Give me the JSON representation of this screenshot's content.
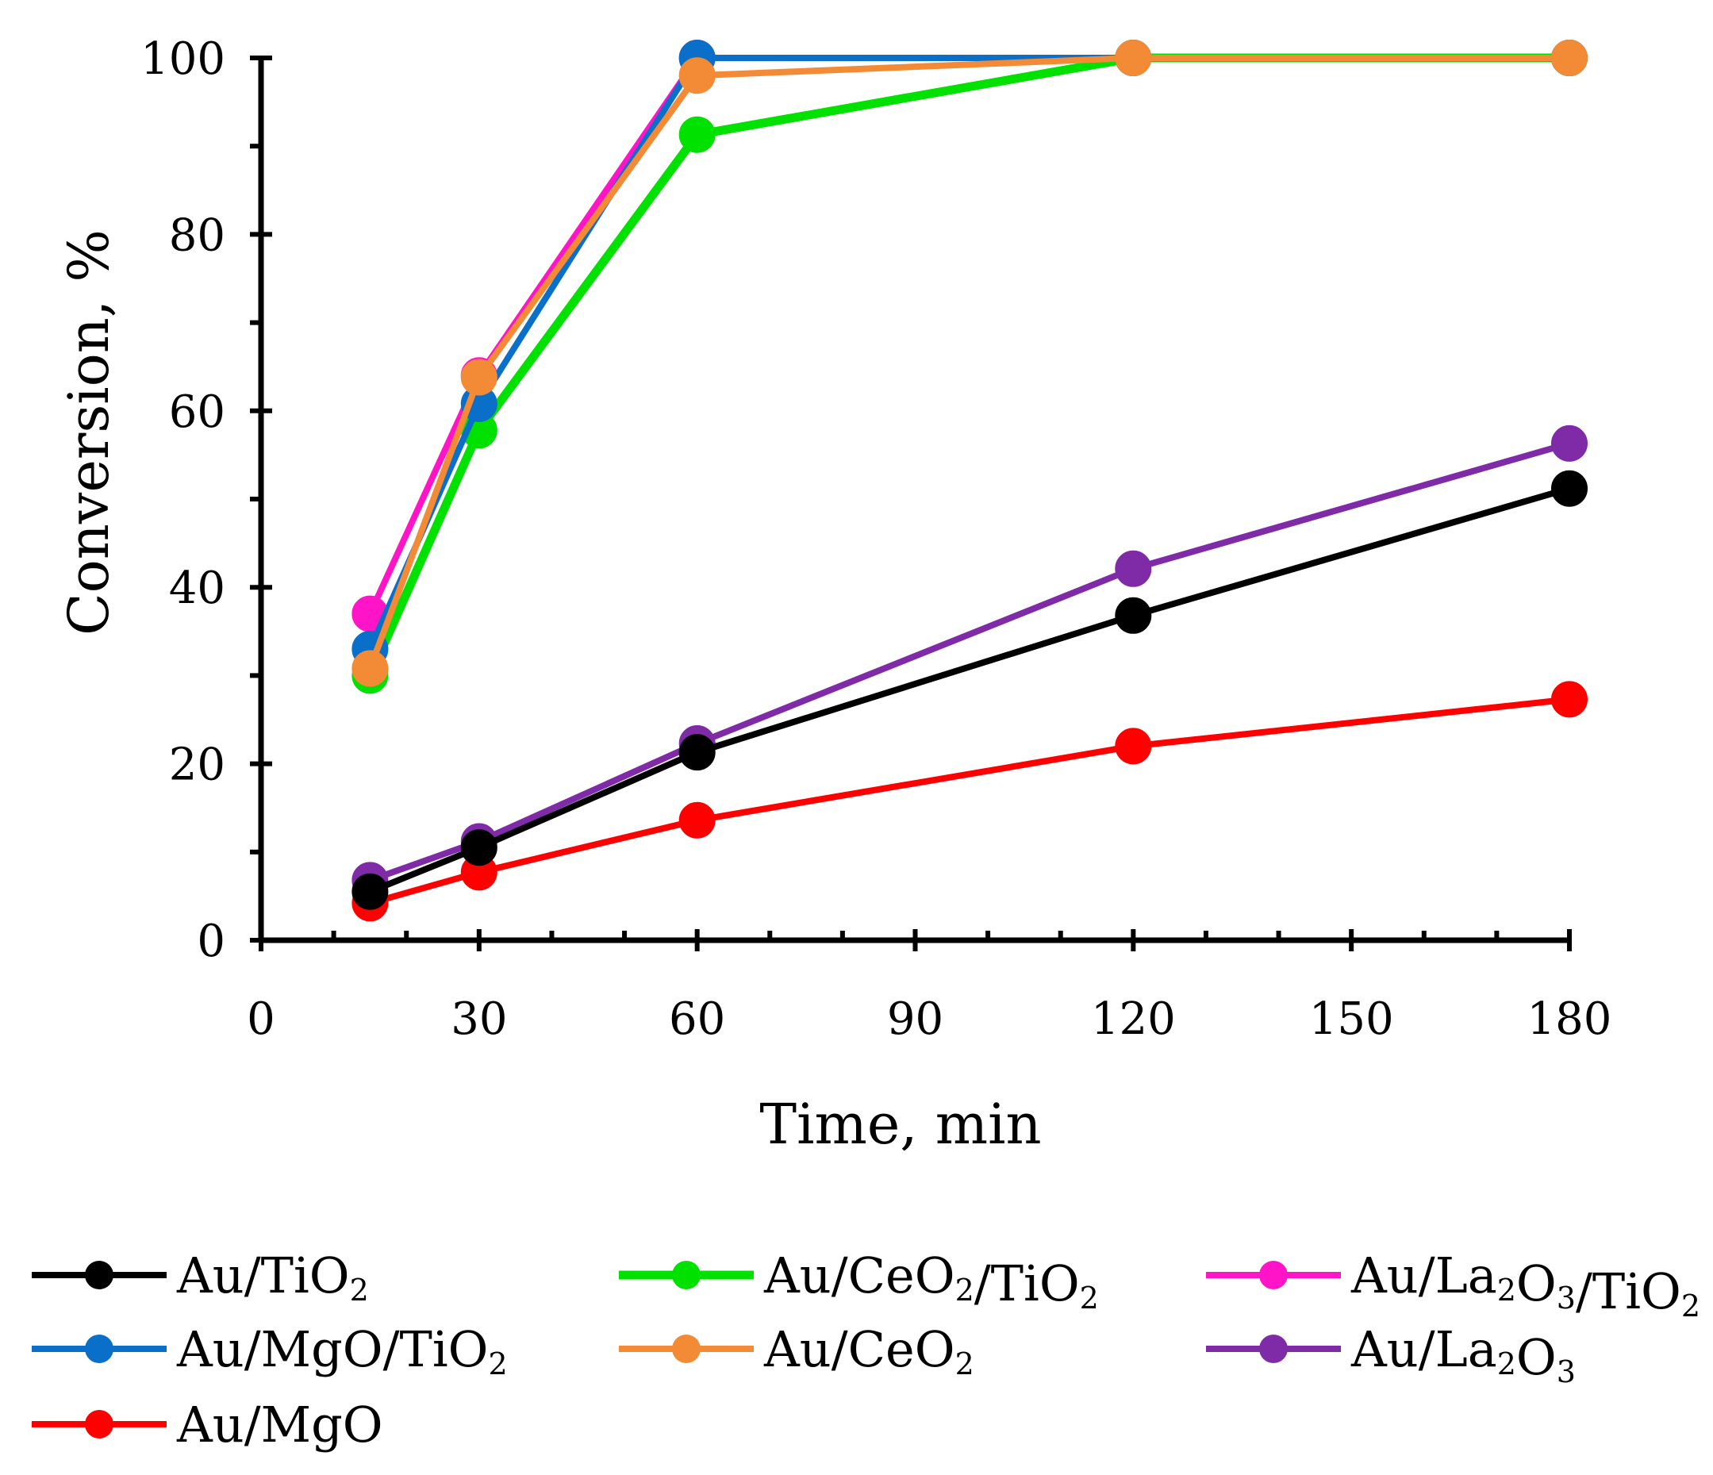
{
  "chart_data": {
    "type": "line",
    "title": "",
    "xlabel": "Time, min",
    "ylabel": "Conversion, %",
    "xlim": [
      0,
      180
    ],
    "ylim": [
      0,
      100
    ],
    "xticks": [
      0,
      30,
      60,
      90,
      120,
      150,
      180
    ],
    "yticks": [
      0,
      20,
      40,
      60,
      80,
      100
    ],
    "xtick_labels": [
      "0",
      "30",
      "60",
      "90",
      "120",
      "150",
      "180"
    ],
    "ytick_labels": [
      "0",
      "20",
      "40",
      "60",
      "80",
      "100"
    ],
    "grid": false,
    "legend_position": "bottom",
    "series": [
      {
        "name": "Au/TiO₂",
        "color": "#000000",
        "x": [
          15,
          30,
          60,
          120,
          180
        ],
        "y": [
          5.5,
          10.5,
          21.3,
          36.8,
          51.2
        ]
      },
      {
        "name": "Au/CeO₂/TiO₂",
        "color": "#00e100",
        "x": [
          15,
          30,
          60,
          120,
          180
        ],
        "y": [
          30.0,
          57.8,
          91.3,
          100,
          100
        ]
      },
      {
        "name": "Au/La₂O₃/TiO₂",
        "color": "#ff14c8",
        "x": [
          15,
          30,
          60,
          120,
          180
        ],
        "y": [
          37.0,
          64.0,
          100,
          100,
          100
        ]
      },
      {
        "name": "Au/MgO/TiO₂",
        "color": "#0a6fc8",
        "x": [
          15,
          30,
          60,
          120,
          180
        ],
        "y": [
          33.0,
          60.8,
          100,
          100,
          100
        ]
      },
      {
        "name": "Au/CeO₂",
        "color": "#f28a36",
        "x": [
          15,
          30,
          60,
          120,
          180
        ],
        "y": [
          30.8,
          63.8,
          98.0,
          100,
          100
        ]
      },
      {
        "name": "Au/La₂O₃",
        "color": "#7f2aa6",
        "x": [
          15,
          30,
          60,
          120,
          180
        ],
        "y": [
          6.8,
          11.2,
          22.3,
          42.1,
          56.3
        ]
      },
      {
        "name": "Au/MgO",
        "color": "#ff0000",
        "x": [
          15,
          30,
          60,
          120,
          180
        ],
        "y": [
          4.2,
          7.7,
          13.6,
          22.0,
          27.3
        ]
      }
    ]
  }
}
